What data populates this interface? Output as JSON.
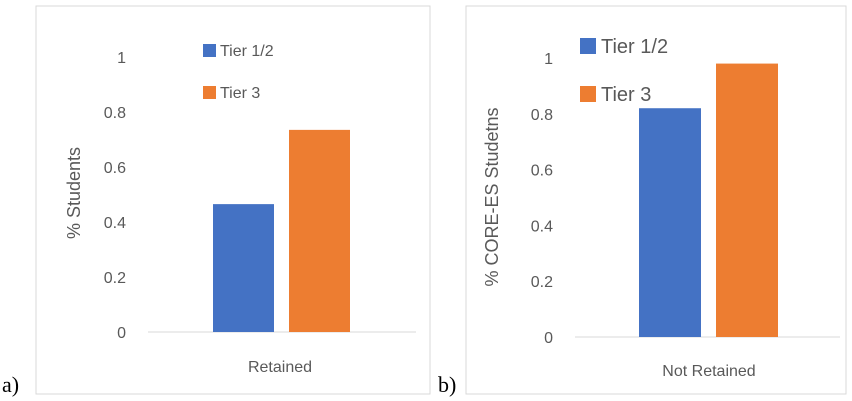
{
  "chart_data": [
    {
      "type": "bar",
      "panel_label": "a)",
      "categories": [
        "Retained"
      ],
      "series": [
        {
          "name": "Tier 1/2",
          "values": [
            0.465
          ]
        },
        {
          "name": "Tier 3",
          "values": [
            0.735
          ]
        }
      ],
      "ylabel": "% Students",
      "ylim": [
        0,
        1
      ],
      "yticks": [
        "0",
        "0.2",
        "0.4",
        "0.6",
        "0.8",
        "1"
      ],
      "legend": "top-inside",
      "colors": [
        "#4472c4",
        "#ed7d31"
      ],
      "grid": false
    },
    {
      "type": "bar",
      "panel_label": "b)",
      "categories": [
        "Not Retained"
      ],
      "series": [
        {
          "name": "Tier 1/2",
          "values": [
            0.82
          ]
        },
        {
          "name": "Tier 3",
          "values": [
            0.98
          ]
        }
      ],
      "ylabel": "% CORE-ES Studetns",
      "ylim": [
        0,
        1
      ],
      "yticks": [
        "0",
        "0.2",
        "0.4",
        "0.6",
        "0.8",
        "1"
      ],
      "legend": "top-inside",
      "colors": [
        "#4472c4",
        "#ed7d31"
      ],
      "grid": false
    }
  ]
}
